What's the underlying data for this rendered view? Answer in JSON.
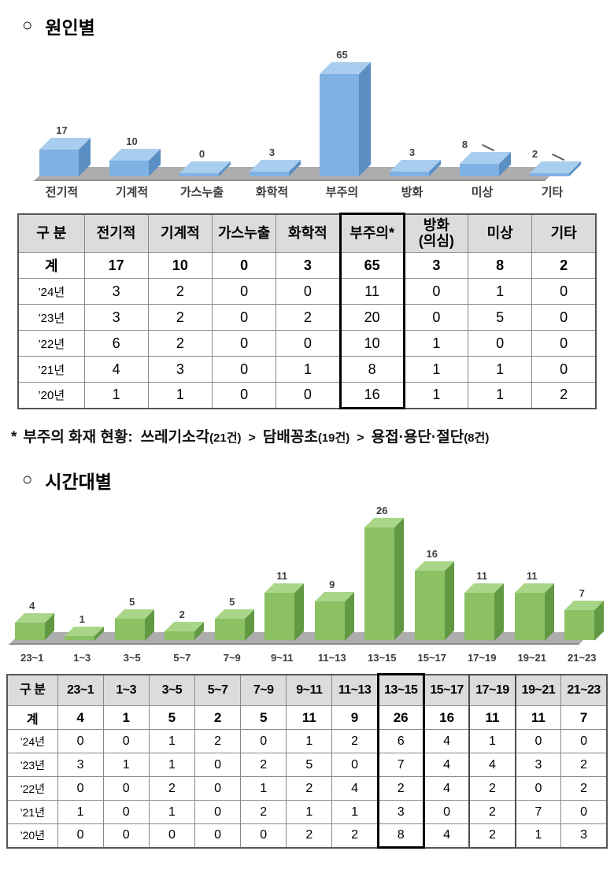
{
  "sections": {
    "cause": {
      "bullet": "○",
      "title": "원인별"
    },
    "time": {
      "bullet": "○",
      "title": "시간대별"
    }
  },
  "chart_data": [
    {
      "type": "bar",
      "title": "원인별",
      "categories": [
        "전기적",
        "기계적",
        "가스누출",
        "화학적",
        "부주의",
        "방화",
        "미상",
        "기타"
      ],
      "values": [
        17,
        10,
        0,
        3,
        65,
        3,
        8,
        2
      ],
      "xlabel": "",
      "ylabel": "",
      "ylim": [
        0,
        70
      ],
      "grid": false,
      "legend": "none",
      "style": "3d",
      "data_labels": true,
      "leader_label_indices": [
        6,
        7
      ],
      "colors": {
        "front": "#7FB2E3",
        "top": "#A9CDEE",
        "side": "#5B8FC4",
        "floor": "#ADADAD",
        "label": "#3f3f3f"
      }
    },
    {
      "type": "bar",
      "title": "시간대별",
      "categories": [
        "23~1",
        "1~3",
        "3~5",
        "5~7",
        "7~9",
        "9~11",
        "11~13",
        "13~15",
        "15~17",
        "17~19",
        "19~21",
        "21~23"
      ],
      "values": [
        4,
        1,
        5,
        2,
        5,
        11,
        9,
        26,
        16,
        11,
        11,
        7
      ],
      "xlabel": "",
      "ylabel": "",
      "ylim": [
        0,
        30
      ],
      "grid": false,
      "legend": "none",
      "style": "3d",
      "data_labels": true,
      "leader_label_indices": [],
      "colors": {
        "front": "#8BC163",
        "top": "#A9D587",
        "side": "#619943",
        "floor": "#ADADAD",
        "label": "#3f3f3f"
      }
    }
  ],
  "table1": {
    "headers": [
      "구 분",
      "전기적",
      "기계적",
      "가스누출",
      "화학적",
      "부주의*",
      "방화\n(의심)",
      "미상",
      "기타"
    ],
    "box_col": 5,
    "rows": [
      {
        "label": "계",
        "bold": true,
        "values": [
          "17",
          "10",
          "0",
          "3",
          "65",
          "3",
          "8",
          "2"
        ]
      },
      {
        "label": "’24년",
        "bold": false,
        "values": [
          "3",
          "2",
          "0",
          "0",
          "11",
          "0",
          "1",
          "0"
        ]
      },
      {
        "label": "’23년",
        "bold": false,
        "values": [
          "3",
          "2",
          "0",
          "2",
          "20",
          "0",
          "5",
          "0"
        ]
      },
      {
        "label": "’22년",
        "bold": false,
        "values": [
          "6",
          "2",
          "0",
          "0",
          "10",
          "1",
          "0",
          "0"
        ]
      },
      {
        "label": "’21년",
        "bold": false,
        "values": [
          "4",
          "3",
          "0",
          "1",
          "8",
          "1",
          "1",
          "0"
        ]
      },
      {
        "label": "’20년",
        "bold": false,
        "values": [
          "1",
          "1",
          "0",
          "0",
          "16",
          "1",
          "1",
          "2"
        ]
      }
    ]
  },
  "footnote": {
    "marker": "*",
    "lead": "부주의 화재 현황:",
    "separator": ">",
    "items": [
      {
        "name": "쓰레기소각",
        "count": "(21건)"
      },
      {
        "name": "담배꽁초",
        "count": "(19건)"
      },
      {
        "name": "용접·용단·절단",
        "count": "(8건)"
      }
    ]
  },
  "table2": {
    "headers": [
      "구 분",
      "23~1",
      "1~3",
      "3~5",
      "5~7",
      "7~9",
      "9~11",
      "11~13",
      "13~15",
      "15~17",
      "17~19",
      "19~21",
      "21~23"
    ],
    "box_col": 8,
    "box_col2": 10,
    "rows": [
      {
        "label": "계",
        "bold": true,
        "values": [
          "4",
          "1",
          "5",
          "2",
          "5",
          "11",
          "9",
          "26",
          "16",
          "11",
          "11",
          "7"
        ]
      },
      {
        "label": "’24년",
        "bold": false,
        "values": [
          "0",
          "0",
          "1",
          "2",
          "0",
          "1",
          "2",
          "6",
          "4",
          "1",
          "0",
          "0"
        ]
      },
      {
        "label": "’23년",
        "bold": false,
        "values": [
          "3",
          "1",
          "1",
          "0",
          "2",
          "5",
          "0",
          "7",
          "4",
          "4",
          "3",
          "2"
        ]
      },
      {
        "label": "’22년",
        "bold": false,
        "values": [
          "0",
          "0",
          "2",
          "0",
          "1",
          "2",
          "4",
          "2",
          "4",
          "2",
          "0",
          "2"
        ]
      },
      {
        "label": "’21년",
        "bold": false,
        "values": [
          "1",
          "0",
          "1",
          "0",
          "2",
          "1",
          "1",
          "3",
          "0",
          "2",
          "7",
          "0"
        ]
      },
      {
        "label": "’20년",
        "bold": false,
        "values": [
          "0",
          "0",
          "0",
          "0",
          "0",
          "2",
          "2",
          "8",
          "4",
          "2",
          "1",
          "3"
        ]
      }
    ]
  }
}
